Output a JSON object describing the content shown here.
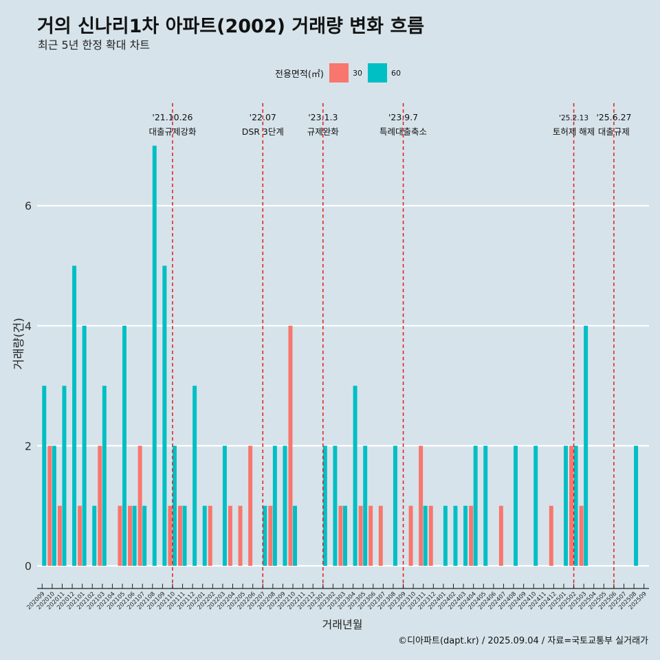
{
  "header": {
    "title": "거의 신나리1차 아파트(2002) 거래량 변화 흐름",
    "subtitle": "최근 5년 한정 확대 차트"
  },
  "legend": {
    "title": "전용면적(㎡)",
    "items": [
      {
        "label": "30",
        "color": "#f8766d"
      },
      {
        "label": "60",
        "color": "#00bfc4"
      }
    ]
  },
  "caption": "©디아파트(dapt.kr) / 2025.09.04 / 자료=국토교통부 실거래가",
  "chart_data": {
    "type": "bar",
    "xlabel": "거래년월",
    "ylabel": "거래량(건)",
    "ylim": [
      -0.3,
      7.2
    ],
    "yticks": [
      0,
      2,
      4,
      6
    ],
    "categories": [
      "202009",
      "202010",
      "202011",
      "202012",
      "202101",
      "202102",
      "202103",
      "202104",
      "202105",
      "202106",
      "202107",
      "202108",
      "202109",
      "202110",
      "202111",
      "202112",
      "202201",
      "202202",
      "202203",
      "202204",
      "202205",
      "202206",
      "202207",
      "202208",
      "202209",
      "202210",
      "202211",
      "202212",
      "202301",
      "202302",
      "202303",
      "202304",
      "202305",
      "202306",
      "202307",
      "202308",
      "202309",
      "202310",
      "202311",
      "202312",
      "202401",
      "202402",
      "202403",
      "202404",
      "202405",
      "202406",
      "202407",
      "202408",
      "202409",
      "202410",
      "202411",
      "202412",
      "202501",
      "202502",
      "202503",
      "202504",
      "202505",
      "202506",
      "202507",
      "202508",
      "202509"
    ],
    "series": [
      {
        "name": "30",
        "color": "#f8766d",
        "values": [
          0,
          2,
          1,
          0,
          1,
          0,
          2,
          0,
          1,
          1,
          2,
          0,
          0,
          1,
          1,
          0,
          0,
          1,
          0,
          1,
          1,
          2,
          0,
          1,
          0,
          4,
          0,
          0,
          0,
          0,
          1,
          0,
          1,
          1,
          1,
          0,
          0,
          1,
          2,
          1,
          0,
          0,
          0,
          1,
          0,
          0,
          1,
          0,
          0,
          0,
          0,
          1,
          0,
          2,
          1,
          0,
          0,
          0,
          0,
          0,
          0
        ]
      },
      {
        "name": "60",
        "color": "#00bfc4",
        "values": [
          3,
          2,
          3,
          5,
          4,
          1,
          3,
          0,
          4,
          1,
          1,
          7,
          5,
          2,
          1,
          3,
          1,
          0,
          2,
          0,
          0,
          0,
          1,
          2,
          2,
          1,
          0,
          0,
          2,
          2,
          1,
          3,
          2,
          0,
          0,
          2,
          0,
          0,
          1,
          0,
          1,
          1,
          1,
          2,
          2,
          0,
          0,
          2,
          0,
          2,
          0,
          0,
          2,
          2,
          4,
          0,
          0,
          0,
          0,
          2,
          0
        ]
      }
    ],
    "events": [
      {
        "date": "'21.10.26",
        "label": "대출규제강화",
        "category": "202110"
      },
      {
        "date": "'22.07",
        "label": "DSR 3단계",
        "category": "202207"
      },
      {
        "date": "'23.1.3",
        "label": "규제완화",
        "category": "202301"
      },
      {
        "date": "'23.9.7",
        "label": "특례대출축소",
        "category": "202309"
      },
      {
        "date": "'25.2.13",
        "label": "토허제 해제",
        "category": "202502"
      },
      {
        "date": "'25.6.27",
        "label": "대출규제",
        "category": "202506"
      }
    ]
  }
}
